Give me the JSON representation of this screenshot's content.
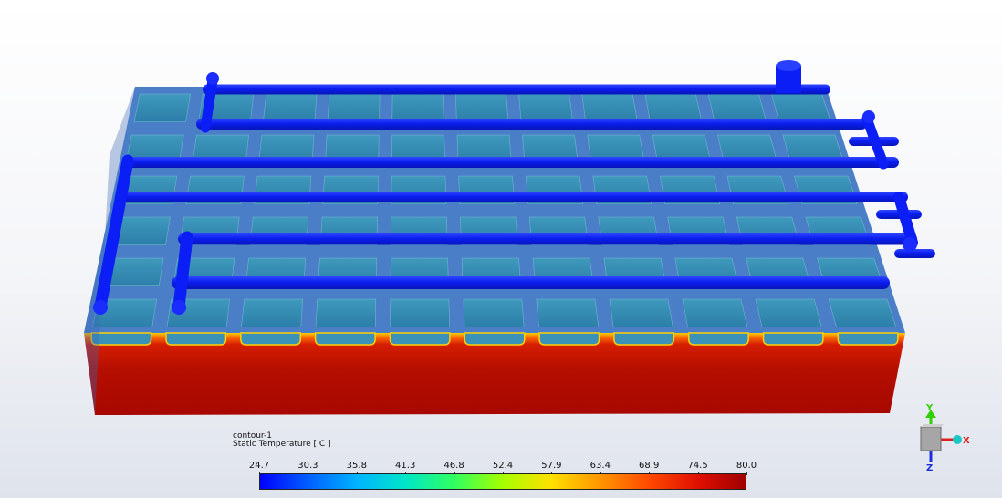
{
  "legend": {
    "name": "contour-1",
    "quantity": "Static Temperature [ C ]",
    "ticks": [
      "24.7",
      "30.3",
      "35.8",
      "41.3",
      "46.8",
      "52.4",
      "57.9",
      "63.4",
      "68.9",
      "74.5",
      "80.0"
    ],
    "colors": [
      "#0000ff",
      "#0060ff",
      "#00b4ff",
      "#00e6c8",
      "#30ff60",
      "#a6ff00",
      "#ffe000",
      "#ff9600",
      "#ff4a00",
      "#e01000",
      "#a00000"
    ]
  },
  "axes": {
    "x": "X",
    "y": "Y",
    "z": "Z"
  },
  "colors": {
    "hot_block": "#b00a00",
    "cell_top": "#3a8fb5",
    "tube": "#0b1ef5",
    "axis_x": "#e0201a",
    "axis_y": "#2fd000",
    "axis_z": "#1a30e0"
  }
}
